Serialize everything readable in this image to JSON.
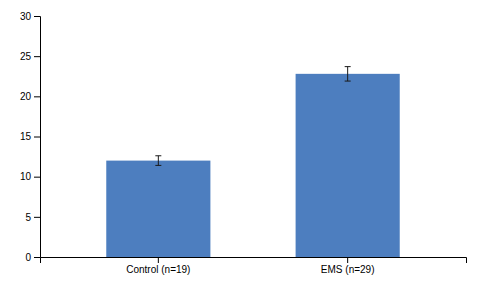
{
  "chart_data": {
    "type": "bar",
    "categories": [
      "Control (n=19)",
      "EMS (n=29)"
    ],
    "values": [
      12.0,
      22.8
    ],
    "errors": [
      0.6,
      0.9
    ],
    "color": "#4d7ebf",
    "ylim": [
      0,
      30
    ],
    "yticks": [
      0,
      5,
      10,
      15,
      20,
      25,
      30
    ],
    "grid": false
  }
}
